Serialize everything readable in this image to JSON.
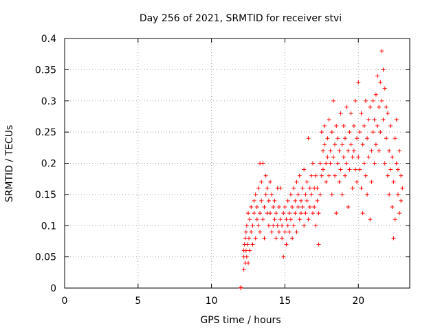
{
  "chart_data": {
    "type": "scatter",
    "title": "Day 256 of 2021, SRMTID for receiver stvi",
    "xlabel": "GPS time / hours",
    "ylabel": "SRMTID / TECUs",
    "xlim": [
      0,
      23.5
    ],
    "ylim": [
      0,
      0.4
    ],
    "xticks": [
      0,
      5,
      10,
      15,
      20
    ],
    "xtick_labels": [
      "0",
      "5",
      "10",
      "15",
      "20"
    ],
    "yticks": [
      0,
      0.05,
      0.1,
      0.15,
      0.2,
      0.25,
      0.3,
      0.35,
      0.4
    ],
    "ytick_labels": [
      "0",
      "0.05",
      "0.1",
      "0.15",
      "0.2",
      "0.25",
      "0.3",
      "0.35",
      "0.4"
    ],
    "grid": true,
    "marker": "+",
    "color": "#ff0000",
    "series": [
      {
        "points": [
          [
            12.0,
            0.0
          ],
          [
            12.0,
            0.001
          ],
          [
            12.2,
            0.03
          ],
          [
            12.2,
            0.05
          ],
          [
            12.2,
            0.06
          ],
          [
            12.25,
            0.07
          ],
          [
            12.3,
            0.04
          ],
          [
            12.3,
            0.08
          ],
          [
            12.35,
            0.09
          ],
          [
            12.35,
            0.06
          ],
          [
            12.4,
            0.05
          ],
          [
            12.4,
            0.1
          ],
          [
            12.45,
            0.07
          ],
          [
            12.5,
            0.04
          ],
          [
            12.5,
            0.12
          ],
          [
            12.55,
            0.08
          ],
          [
            12.6,
            0.06
          ],
          [
            12.6,
            0.11
          ],
          [
            12.7,
            0.13
          ],
          [
            12.7,
            0.09
          ],
          [
            12.8,
            0.1
          ],
          [
            12.8,
            0.07
          ],
          [
            12.9,
            0.14
          ],
          [
            12.9,
            0.12
          ],
          [
            13.0,
            0.08
          ],
          [
            13.0,
            0.15
          ],
          [
            13.1,
            0.11
          ],
          [
            13.1,
            0.13
          ],
          [
            13.2,
            0.1
          ],
          [
            13.2,
            0.16
          ],
          [
            13.3,
            0.12
          ],
          [
            13.3,
            0.2
          ],
          [
            13.3,
            0.09
          ],
          [
            13.4,
            0.17
          ],
          [
            13.4,
            0.14
          ],
          [
            13.5,
            0.11
          ],
          [
            13.5,
            0.2
          ],
          [
            13.6,
            0.13
          ],
          [
            13.6,
            0.08
          ],
          [
            13.7,
            0.15
          ],
          [
            13.7,
            0.18
          ],
          [
            13.8,
            0.12
          ],
          [
            13.8,
            0.16
          ],
          [
            13.9,
            0.1
          ],
          [
            13.9,
            0.14
          ],
          [
            14.0,
            0.17
          ],
          [
            14.0,
            0.12
          ],
          [
            14.1,
            0.09
          ],
          [
            14.1,
            0.15
          ],
          [
            14.2,
            0.13
          ],
          [
            14.2,
            0.1
          ],
          [
            14.3,
            0.14
          ],
          [
            14.3,
            0.11
          ],
          [
            14.4,
            0.08
          ],
          [
            14.4,
            0.12
          ],
          [
            14.5,
            0.16
          ],
          [
            14.5,
            0.1
          ],
          [
            14.6,
            0.13
          ],
          [
            14.6,
            0.09
          ],
          [
            14.7,
            0.11
          ],
          [
            14.7,
            0.16
          ],
          [
            14.8,
            0.1
          ],
          [
            14.8,
            0.08
          ],
          [
            14.9,
            0.12
          ],
          [
            14.9,
            0.05
          ],
          [
            15.0,
            0.09
          ],
          [
            15.0,
            0.13
          ],
          [
            15.1,
            0.11
          ],
          [
            15.1,
            0.07
          ],
          [
            15.2,
            0.1
          ],
          [
            15.2,
            0.14
          ],
          [
            15.3,
            0.12
          ],
          [
            15.3,
            0.09
          ],
          [
            15.4,
            0.15
          ],
          [
            15.4,
            0.11
          ],
          [
            15.5,
            0.08
          ],
          [
            15.5,
            0.13
          ],
          [
            15.6,
            0.16
          ],
          [
            15.6,
            0.1
          ],
          [
            15.7,
            0.14
          ],
          [
            15.7,
            0.12
          ],
          [
            15.8,
            0.09
          ],
          [
            15.8,
            0.17
          ],
          [
            15.9,
            0.13
          ],
          [
            15.9,
            0.15
          ],
          [
            16.0,
            0.11
          ],
          [
            16.0,
            0.18
          ],
          [
            16.1,
            0.14
          ],
          [
            16.1,
            0.12
          ],
          [
            16.2,
            0.16
          ],
          [
            16.2,
            0.13
          ],
          [
            16.3,
            0.1
          ],
          [
            16.3,
            0.19
          ],
          [
            16.4,
            0.15
          ],
          [
            16.4,
            0.12
          ],
          [
            16.5,
            0.17
          ],
          [
            16.5,
            0.14
          ],
          [
            16.6,
            0.11
          ],
          [
            16.6,
            0.24
          ],
          [
            16.7,
            0.16
          ],
          [
            16.7,
            0.13
          ],
          [
            16.8,
            0.18
          ],
          [
            16.8,
            0.15
          ],
          [
            16.9,
            0.12
          ],
          [
            16.9,
            0.2
          ],
          [
            17.0,
            0.16
          ],
          [
            17.0,
            0.13
          ],
          [
            17.1,
            0.1
          ],
          [
            17.1,
            0.18
          ],
          [
            17.2,
            0.14
          ],
          [
            17.2,
            0.16
          ],
          [
            17.3,
            0.12
          ],
          [
            17.3,
            0.07
          ],
          [
            17.4,
            0.2
          ],
          [
            17.4,
            0.15
          ],
          [
            17.5,
            0.18
          ],
          [
            17.5,
            0.25
          ],
          [
            17.6,
            0.22
          ],
          [
            17.6,
            0.19
          ],
          [
            17.7,
            0.23
          ],
          [
            17.7,
            0.26
          ],
          [
            17.8,
            0.2
          ],
          [
            17.8,
            0.17
          ],
          [
            17.9,
            0.24
          ],
          [
            17.9,
            0.21
          ],
          [
            18.0,
            0.18
          ],
          [
            18.0,
            0.27
          ],
          [
            18.1,
            0.22
          ],
          [
            18.1,
            0.2
          ],
          [
            18.2,
            0.25
          ],
          [
            18.2,
            0.15
          ],
          [
            18.3,
            0.21
          ],
          [
            18.3,
            0.3
          ],
          [
            18.4,
            0.23
          ],
          [
            18.4,
            0.18
          ],
          [
            18.5,
            0.26
          ],
          [
            18.5,
            0.12
          ],
          [
            18.6,
            0.2
          ],
          [
            18.6,
            0.24
          ],
          [
            18.7,
            0.17
          ],
          [
            18.7,
            0.22
          ],
          [
            18.8,
            0.28
          ],
          [
            18.8,
            0.19
          ],
          [
            18.9,
            0.23
          ],
          [
            18.9,
            0.15
          ],
          [
            19.0,
            0.21
          ],
          [
            19.0,
            0.26
          ],
          [
            19.1,
            0.18
          ],
          [
            19.1,
            0.24
          ],
          [
            19.2,
            0.2
          ],
          [
            19.2,
            0.29
          ],
          [
            19.3,
            0.22
          ],
          [
            19.3,
            0.13
          ],
          [
            19.4,
            0.25
          ],
          [
            19.4,
            0.19
          ],
          [
            19.5,
            0.23
          ],
          [
            19.5,
            0.28
          ],
          [
            19.6,
            0.21
          ],
          [
            19.6,
            0.16
          ],
          [
            19.7,
            0.26
          ],
          [
            19.7,
            0.22
          ],
          [
            19.8,
            0.3
          ],
          [
            19.8,
            0.19
          ],
          [
            19.9,
            0.24
          ],
          [
            19.9,
            0.17
          ],
          [
            20.0,
            0.33
          ],
          [
            20.0,
            0.21
          ],
          [
            20.1,
            0.25
          ],
          [
            20.1,
            0.19
          ],
          [
            20.2,
            0.28
          ],
          [
            20.2,
            0.16
          ],
          [
            20.3,
            0.23
          ],
          [
            20.3,
            0.12
          ],
          [
            20.4,
            0.26
          ],
          [
            20.4,
            0.2
          ],
          [
            20.5,
            0.3
          ],
          [
            20.5,
            0.18
          ],
          [
            20.6,
            0.24
          ],
          [
            20.6,
            0.15
          ],
          [
            20.7,
            0.27
          ],
          [
            20.7,
            0.21
          ],
          [
            20.8,
            0.11
          ],
          [
            20.8,
            0.29
          ],
          [
            20.9,
            0.22
          ],
          [
            20.9,
            0.17
          ],
          [
            21.0,
            0.25
          ],
          [
            21.0,
            0.3
          ],
          [
            21.1,
            0.2
          ],
          [
            21.1,
            0.27
          ],
          [
            21.2,
            0.23
          ],
          [
            21.2,
            0.31
          ],
          [
            21.3,
            0.26
          ],
          [
            21.3,
            0.34
          ],
          [
            21.4,
            0.22
          ],
          [
            21.4,
            0.29
          ],
          [
            21.5,
            0.33
          ],
          [
            21.5,
            0.25
          ],
          [
            21.6,
            0.38
          ],
          [
            21.6,
            0.3
          ],
          [
            21.7,
            0.35
          ],
          [
            21.7,
            0.27
          ],
          [
            21.8,
            0.32
          ],
          [
            21.8,
            0.2
          ],
          [
            21.9,
            0.29
          ],
          [
            21.9,
            0.24
          ],
          [
            22.0,
            0.28
          ],
          [
            22.0,
            0.18
          ],
          [
            22.1,
            0.22
          ],
          [
            22.1,
            0.15
          ],
          [
            22.2,
            0.26
          ],
          [
            22.2,
            0.19
          ],
          [
            22.3,
            0.13
          ],
          [
            22.3,
            0.21
          ],
          [
            22.4,
            0.08
          ],
          [
            22.4,
            0.17
          ],
          [
            22.5,
            0.24
          ],
          [
            22.5,
            0.11
          ],
          [
            22.6,
            0.2
          ],
          [
            22.6,
            0.27
          ],
          [
            22.7,
            0.15
          ],
          [
            22.7,
            0.19
          ],
          [
            22.8,
            0.12
          ],
          [
            22.8,
            0.22
          ],
          [
            22.9,
            0.18
          ],
          [
            22.9,
            0.14
          ],
          [
            23.0,
            0.16
          ]
        ]
      }
    ]
  }
}
